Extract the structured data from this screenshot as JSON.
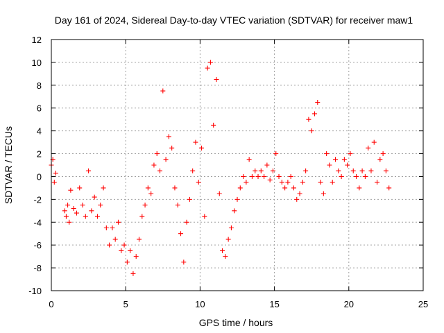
{
  "chart_data": {
    "type": "scatter",
    "title": "Day 161 of 2024, Sidereal Day-to-day VTEC variation (SDTVAR) for receiver maw1",
    "xlabel": "GPS time / hours",
    "ylabel": "SDTVAR / TECUs",
    "xlim": [
      0,
      25
    ],
    "ylim": [
      -10,
      12
    ],
    "xticks": [
      0,
      5,
      10,
      15,
      20,
      25
    ],
    "yticks": [
      -10,
      -8,
      -6,
      -4,
      -2,
      0,
      2,
      4,
      6,
      8,
      10,
      12
    ],
    "xtick_labels": [
      "0",
      "5",
      "10",
      "15",
      "20",
      "25"
    ],
    "ytick_labels": [
      "-10",
      "-8",
      "-6",
      "-4",
      "-2",
      "0",
      "2",
      "4",
      "6",
      "8",
      "10",
      "12"
    ],
    "grid": true,
    "marker": "+",
    "color": "#ff0000",
    "series": [
      {
        "name": "SDTVAR",
        "x": [
          0.0,
          0.1,
          0.2,
          0.3,
          0.9,
          1.0,
          1.1,
          1.2,
          1.3,
          1.5,
          1.7,
          1.9,
          2.1,
          2.3,
          2.5,
          2.7,
          2.9,
          3.1,
          3.3,
          3.5,
          3.7,
          3.9,
          4.1,
          4.3,
          4.5,
          4.7,
          4.9,
          5.1,
          5.3,
          5.5,
          5.7,
          5.9,
          6.1,
          6.3,
          6.5,
          6.7,
          6.9,
          7.1,
          7.3,
          7.5,
          7.7,
          7.9,
          8.1,
          8.3,
          8.5,
          8.7,
          8.9,
          9.1,
          9.3,
          9.5,
          9.7,
          9.9,
          10.1,
          10.3,
          10.5,
          10.7,
          10.9,
          11.1,
          11.3,
          11.5,
          11.7,
          11.9,
          12.1,
          12.3,
          12.5,
          12.7,
          12.9,
          13.1,
          13.3,
          13.5,
          13.7,
          13.9,
          14.1,
          14.3,
          14.5,
          14.7,
          14.9,
          15.1,
          15.3,
          15.5,
          15.7,
          15.9,
          16.1,
          16.3,
          16.5,
          16.7,
          16.9,
          17.1,
          17.3,
          17.5,
          17.7,
          17.9,
          18.1,
          18.3,
          18.5,
          18.7,
          18.9,
          19.1,
          19.3,
          19.5,
          19.7,
          19.9,
          20.1,
          20.3,
          20.5,
          20.7,
          20.9,
          21.1,
          21.3,
          21.5,
          21.7,
          21.9,
          22.1,
          22.3,
          22.5,
          22.7
        ],
        "y": [
          1.0,
          1.5,
          -0.5,
          0.3,
          -3.0,
          -3.5,
          -2.5,
          -4.0,
          -1.2,
          -2.8,
          -3.2,
          -1.0,
          -2.5,
          -3.5,
          0.5,
          -3.0,
          -1.8,
          -3.5,
          -2.5,
          -1.0,
          -4.5,
          -6.0,
          -4.5,
          -5.5,
          -4.0,
          -6.5,
          -6.0,
          -7.5,
          -6.5,
          -8.5,
          -7.0,
          -5.5,
          -3.5,
          -2.5,
          -1.0,
          -1.5,
          1.0,
          2.0,
          0.5,
          7.5,
          1.5,
          3.5,
          2.5,
          -1.0,
          -2.5,
          -5.0,
          -7.5,
          -4.0,
          -2.0,
          0.5,
          3.0,
          -0.5,
          2.5,
          -3.5,
          9.5,
          10.0,
          4.5,
          8.5,
          -1.5,
          -6.5,
          -7.0,
          -5.5,
          -4.5,
          -3.0,
          -2.0,
          -1.0,
          0.0,
          -0.5,
          1.5,
          0.0,
          0.5,
          0.0,
          0.5,
          0.0,
          1.0,
          -0.3,
          0.5,
          2.0,
          0.0,
          -0.5,
          -1.0,
          -0.5,
          0.0,
          -1.0,
          -2.0,
          -1.5,
          -0.5,
          0.5,
          5.0,
          4.0,
          5.5,
          6.5,
          -0.5,
          -1.5,
          2.0,
          1.0,
          -0.5,
          1.5,
          0.5,
          0.0,
          1.5,
          1.0,
          2.0,
          0.5,
          0.0,
          -1.0,
          0.5,
          0.0,
          2.5,
          0.5,
          3.0,
          -0.5,
          1.5,
          2.0,
          0.5,
          -1.0
        ]
      }
    ]
  }
}
